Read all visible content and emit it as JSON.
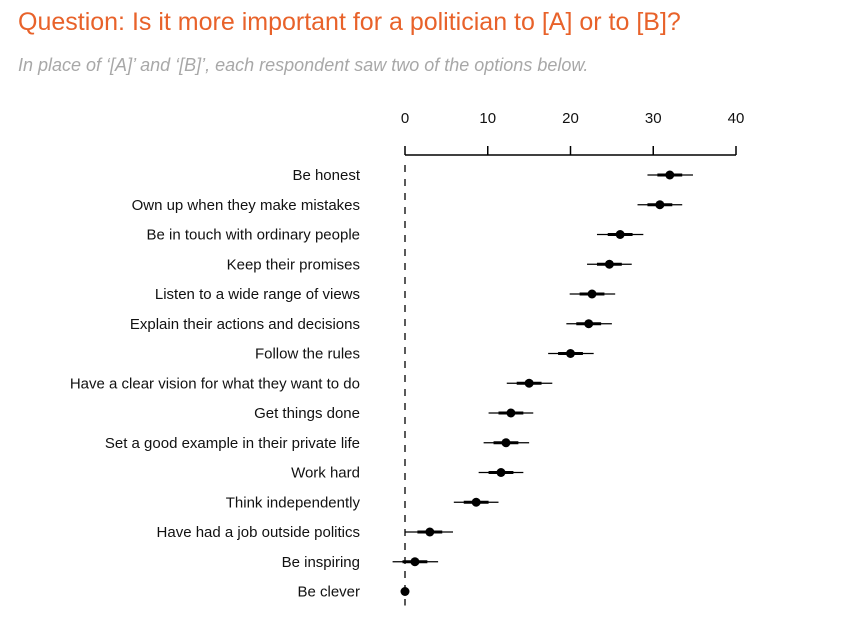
{
  "header": {
    "title": "Question: Is it more important for a politician to [A] or to [B]?",
    "subtitle": "In place of ‘[A]’ and ‘[B]’, each respondent saw two of the options below."
  },
  "chart_data": {
    "type": "scatter",
    "title": "",
    "xlabel": "",
    "ylabel": "",
    "xlim": [
      0,
      40
    ],
    "xticks": [
      0,
      10,
      20,
      30,
      40
    ],
    "x_axis_position": "top",
    "grid": false,
    "reference_line": 0,
    "categories": [
      "Be honest",
      "Own up when they make mistakes",
      "Be in touch with ordinary people",
      "Keep their promises",
      "Listen to a wide range of views",
      "Explain their actions and decisions",
      "Follow the rules",
      "Have a clear vision for what they want to do",
      "Get things done",
      "Set a good example in their private life",
      "Work hard",
      "Think independently",
      "Have had a job outside politics",
      "Be inspiring",
      "Be clever"
    ],
    "series": [
      {
        "estimate": [
          32,
          30.8,
          26,
          24.7,
          22.6,
          22.2,
          20,
          15,
          12.8,
          12.2,
          11.6,
          8.6,
          3,
          1.2,
          0
        ],
        "ci_inner_low": [
          30.5,
          29.3,
          24.5,
          23.2,
          21.1,
          20.7,
          18.5,
          13.5,
          11.3,
          10.7,
          10.1,
          7.1,
          1.5,
          -0.3,
          0
        ],
        "ci_inner_high": [
          33.5,
          32.3,
          27.5,
          26.2,
          24.1,
          23.7,
          21.5,
          16.5,
          14.3,
          13.7,
          13.1,
          10.1,
          4.5,
          2.7,
          0
        ],
        "ci_outer_low": [
          29.3,
          28.1,
          23.2,
          22,
          19.9,
          19.5,
          17.3,
          12.3,
          10.1,
          9.5,
          8.9,
          5.9,
          0,
          -1.5,
          0
        ],
        "ci_outer_high": [
          34.8,
          33.5,
          28.8,
          27.4,
          25.4,
          25,
          22.8,
          17.8,
          15.5,
          15,
          14.3,
          11.3,
          5.8,
          4,
          0
        ]
      }
    ],
    "colors": {
      "marker": "#000000"
    }
  }
}
